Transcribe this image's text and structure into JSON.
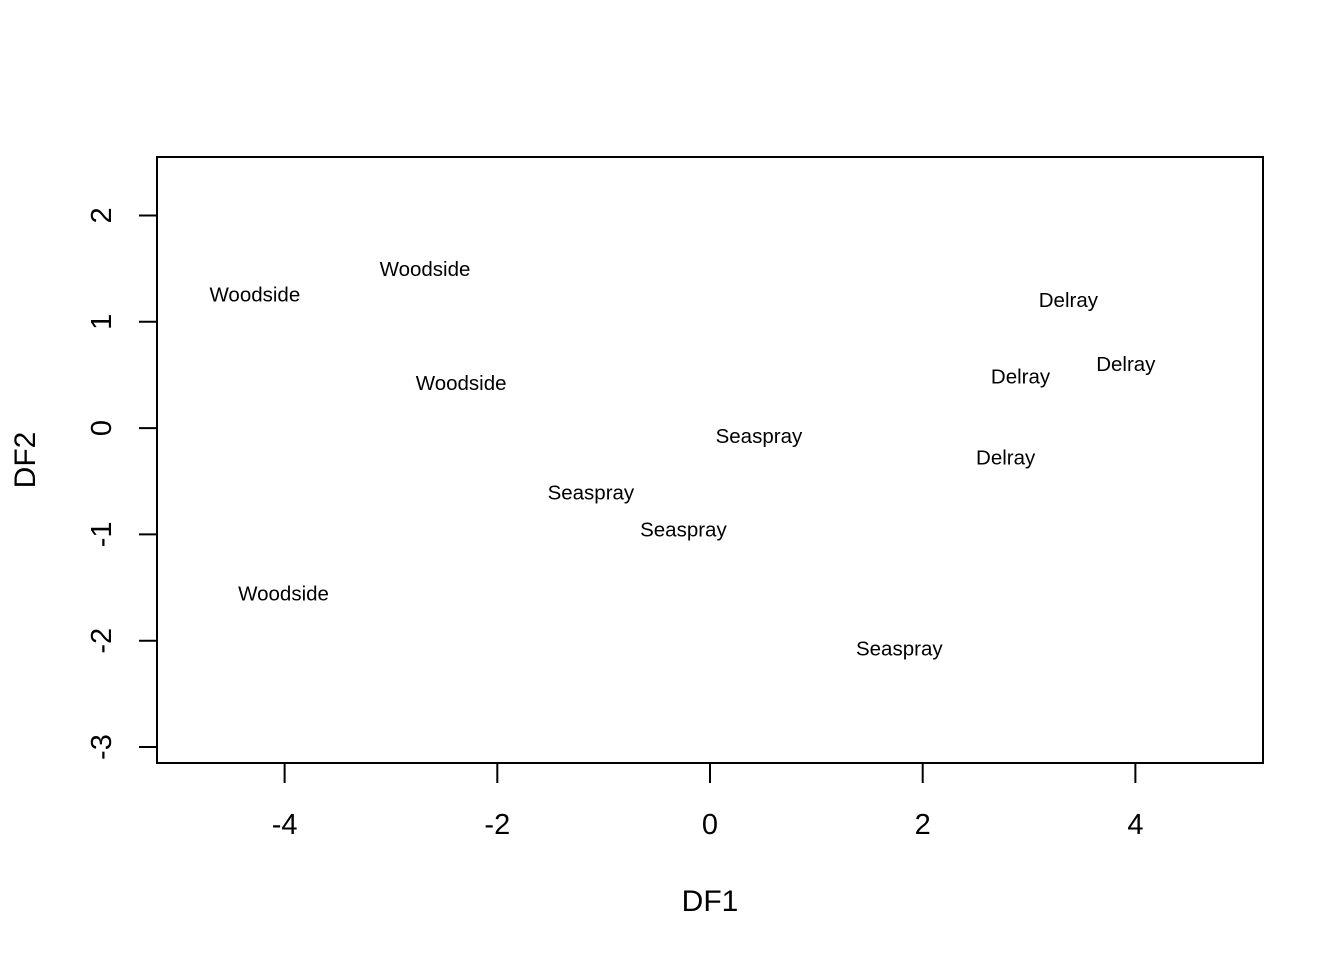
{
  "chart_data": {
    "type": "scatter",
    "title": "",
    "xlabel": "DF1",
    "ylabel": "DF2",
    "xlim": [
      -5.2,
      5.2
    ],
    "ylim": [
      -3.15,
      2.55
    ],
    "x_ticks": [
      -4,
      -2,
      0,
      2,
      4
    ],
    "x_tick_labels": [
      "-4",
      "-2",
      "0",
      "2",
      "4"
    ],
    "y_ticks": [
      -3,
      -2,
      -1,
      0,
      1,
      2
    ],
    "y_tick_labels": [
      "-3",
      "-2",
      "-1",
      "0",
      "1",
      "2"
    ],
    "grid": false,
    "points": [
      {
        "label": "Woodside",
        "x": -4.28,
        "y": 1.25
      },
      {
        "label": "Woodside",
        "x": -2.68,
        "y": 1.49
      },
      {
        "label": "Woodside",
        "x": -2.34,
        "y": 0.42
      },
      {
        "label": "Woodside",
        "x": -4.01,
        "y": -1.56
      },
      {
        "label": "Seaspray",
        "x": 0.46,
        "y": -0.08
      },
      {
        "label": "Seaspray",
        "x": -1.12,
        "y": -0.61
      },
      {
        "label": "Seaspray",
        "x": -0.25,
        "y": -0.96
      },
      {
        "label": "Seaspray",
        "x": 1.78,
        "y": -2.08
      },
      {
        "label": "Delray",
        "x": 3.37,
        "y": 1.2
      },
      {
        "label": "Delray",
        "x": 2.92,
        "y": 0.48
      },
      {
        "label": "Delray",
        "x": 3.91,
        "y": 0.6
      },
      {
        "label": "Delray",
        "x": 2.78,
        "y": -0.28
      }
    ]
  }
}
